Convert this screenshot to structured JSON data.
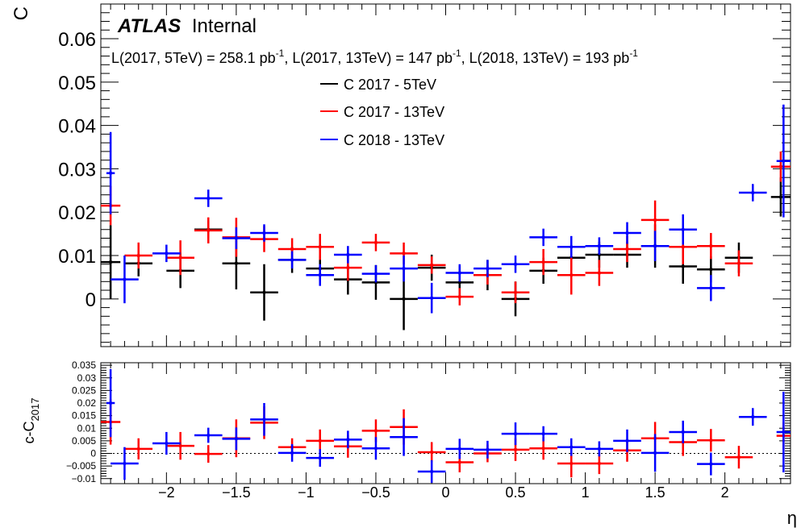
{
  "chart_data": [
    {
      "type": "scatter",
      "experiment": "ATLAS",
      "status": "Internal",
      "lumi_text": {
        "l1_pre": "L(2017, 5TeV) = 258.1 pb",
        "l2_pre": ", L(2017, 13TeV) = 147 pb",
        "l3_pre": ", L(2018, 13TeV) = 193 pb",
        "exp": "-1"
      },
      "ylabel": "C",
      "ylim": [
        -0.011,
        0.068
      ],
      "xlim": [
        -2.47,
        2.47
      ],
      "yticks": [
        0,
        0.01,
        0.02,
        0.03,
        0.04,
        0.05,
        0.06
      ],
      "ytick_labels": [
        "0",
        "0.01",
        "0.02",
        "0.03",
        "0.04",
        "0.05",
        "0.06"
      ],
      "legend_placement": "top-center",
      "series": [
        {
          "name": "C 2017 - 5TeV",
          "color": "#000000",
          "points": [
            {
              "x": -2.4,
              "xerr": 0.07,
              "y": 0.0085,
              "yerr": 0.0085
            },
            {
              "x": -2.2,
              "xerr": 0.1,
              "y": 0.0082,
              "yerr": 0.003
            },
            {
              "x": -1.9,
              "xerr": 0.1,
              "y": 0.0065,
              "yerr": 0.004
            },
            {
              "x": -1.7,
              "xerr": 0.1,
              "y": 0.016,
              "yerr": 0.002
            },
            {
              "x": -1.5,
              "xerr": 0.1,
              "y": 0.0082,
              "yerr": 0.006
            },
            {
              "x": -1.3,
              "xerr": 0.1,
              "y": 0.0015,
              "yerr": 0.0065
            },
            {
              "x": -1.1,
              "xerr": 0.1,
              "y": 0.009,
              "yerr": 0.003
            },
            {
              "x": -0.9,
              "xerr": 0.1,
              "y": 0.007,
              "yerr": 0.003
            },
            {
              "x": -0.7,
              "xerr": 0.1,
              "y": 0.0045,
              "yerr": 0.0035
            },
            {
              "x": -0.5,
              "xerr": 0.1,
              "y": 0.0038,
              "yerr": 0.004
            },
            {
              "x": -0.3,
              "xerr": 0.1,
              "y": 0.0,
              "yerr": 0.0072
            },
            {
              "x": -0.1,
              "xerr": 0.1,
              "y": 0.0072,
              "yerr": 0.003
            },
            {
              "x": 0.1,
              "xerr": 0.1,
              "y": 0.0038,
              "yerr": 0.0038
            },
            {
              "x": 0.3,
              "xerr": 0.1,
              "y": 0.0055,
              "yerr": 0.0035
            },
            {
              "x": 0.5,
              "xerr": 0.1,
              "y": 0.0,
              "yerr": 0.004
            },
            {
              "x": 0.7,
              "xerr": 0.1,
              "y": 0.0065,
              "yerr": 0.003
            },
            {
              "x": 0.9,
              "xerr": 0.1,
              "y": 0.0095,
              "yerr": 0.003
            },
            {
              "x": 1.1,
              "xerr": 0.1,
              "y": 0.0102,
              "yerr": 0.003
            },
            {
              "x": 1.3,
              "xerr": 0.1,
              "y": 0.0102,
              "yerr": 0.003
            },
            {
              "x": 1.5,
              "xerr": 0.1,
              "y": 0.0122,
              "yerr": 0.005
            },
            {
              "x": 1.7,
              "xerr": 0.1,
              "y": 0.0075,
              "yerr": 0.004
            },
            {
              "x": 1.9,
              "xerr": 0.1,
              "y": 0.0068,
              "yerr": 0.003
            },
            {
              "x": 2.1,
              "xerr": 0.1,
              "y": 0.0095,
              "yerr": 0.0035
            },
            {
              "x": 2.4,
              "xerr": 0.07,
              "y": 0.0235,
              "yerr": 0.0045
            }
          ]
        },
        {
          "name": "C 2017 - 13TeV",
          "color": "#ff0000",
          "points": [
            {
              "x": -2.4,
              "xerr": 0.07,
              "y": 0.0215,
              "yerr": 0.0045
            },
            {
              "x": -2.2,
              "xerr": 0.1,
              "y": 0.01,
              "yerr": 0.003
            },
            {
              "x": -1.9,
              "xerr": 0.1,
              "y": 0.0095,
              "yerr": 0.004
            },
            {
              "x": -1.7,
              "xerr": 0.1,
              "y": 0.0158,
              "yerr": 0.003
            },
            {
              "x": -1.5,
              "xerr": 0.1,
              "y": 0.0142,
              "yerr": 0.0045
            },
            {
              "x": -1.3,
              "xerr": 0.1,
              "y": 0.0138,
              "yerr": 0.003
            },
            {
              "x": -1.1,
              "xerr": 0.1,
              "y": 0.0115,
              "yerr": 0.0025
            },
            {
              "x": -0.9,
              "xerr": 0.1,
              "y": 0.012,
              "yerr": 0.003
            },
            {
              "x": -0.7,
              "xerr": 0.1,
              "y": 0.0072,
              "yerr": 0.003
            },
            {
              "x": -0.5,
              "xerr": 0.1,
              "y": 0.013,
              "yerr": 0.002
            },
            {
              "x": -0.3,
              "xerr": 0.1,
              "y": 0.0105,
              "yerr": 0.0025
            },
            {
              "x": -0.1,
              "xerr": 0.1,
              "y": 0.0078,
              "yerr": 0.002
            },
            {
              "x": 0.1,
              "xerr": 0.1,
              "y": 0.0005,
              "yerr": 0.002
            },
            {
              "x": 0.3,
              "xerr": 0.1,
              "y": 0.0055,
              "yerr": 0.0022
            },
            {
              "x": 0.5,
              "xerr": 0.1,
              "y": 0.0015,
              "yerr": 0.0025
            },
            {
              "x": 0.7,
              "xerr": 0.1,
              "y": 0.0085,
              "yerr": 0.003
            },
            {
              "x": 0.9,
              "xerr": 0.1,
              "y": 0.0055,
              "yerr": 0.0045
            },
            {
              "x": 1.1,
              "xerr": 0.1,
              "y": 0.006,
              "yerr": 0.003
            },
            {
              "x": 1.3,
              "xerr": 0.1,
              "y": 0.0115,
              "yerr": 0.003
            },
            {
              "x": 1.5,
              "xerr": 0.1,
              "y": 0.0182,
              "yerr": 0.0045
            },
            {
              "x": 1.7,
              "xerr": 0.1,
              "y": 0.012,
              "yerr": 0.004
            },
            {
              "x": 1.9,
              "xerr": 0.1,
              "y": 0.0122,
              "yerr": 0.003
            },
            {
              "x": 2.1,
              "xerr": 0.1,
              "y": 0.0082,
              "yerr": 0.003
            },
            {
              "x": 2.4,
              "xerr": 0.07,
              "y": 0.0305,
              "yerr": 0.0035
            }
          ]
        },
        {
          "name": "C 2018 - 13TeV",
          "color": "#0000ff",
          "points": [
            {
              "x": -2.4,
              "xerr": 0.03,
              "y": 0.029,
              "yerr": 0.0095
            },
            {
              "x": -2.3,
              "xerr": 0.1,
              "y": 0.0045,
              "yerr": 0.0055
            },
            {
              "x": -2.0,
              "xerr": 0.1,
              "y": 0.0105,
              "yerr": 0.002
            },
            {
              "x": -1.7,
              "xerr": 0.1,
              "y": 0.0232,
              "yerr": 0.002
            },
            {
              "x": -1.5,
              "xerr": 0.1,
              "y": 0.014,
              "yerr": 0.0025
            },
            {
              "x": -1.3,
              "xerr": 0.1,
              "y": 0.0152,
              "yerr": 0.002
            },
            {
              "x": -1.1,
              "xerr": 0.1,
              "y": 0.009,
              "yerr": 0.002
            },
            {
              "x": -0.9,
              "xerr": 0.1,
              "y": 0.0055,
              "yerr": 0.0025
            },
            {
              "x": -0.7,
              "xerr": 0.1,
              "y": 0.0102,
              "yerr": 0.002
            },
            {
              "x": -0.5,
              "xerr": 0.1,
              "y": 0.0058,
              "yerr": 0.002
            },
            {
              "x": -0.3,
              "xerr": 0.1,
              "y": 0.007,
              "yerr": 0.003
            },
            {
              "x": -0.1,
              "xerr": 0.1,
              "y": 0.0002,
              "yerr": 0.0035
            },
            {
              "x": 0.1,
              "xerr": 0.1,
              "y": 0.006,
              "yerr": 0.002
            },
            {
              "x": 0.3,
              "xerr": 0.1,
              "y": 0.007,
              "yerr": 0.002
            },
            {
              "x": 0.5,
              "xerr": 0.1,
              "y": 0.008,
              "yerr": 0.002
            },
            {
              "x": 0.7,
              "xerr": 0.1,
              "y": 0.0142,
              "yerr": 0.002
            },
            {
              "x": 0.9,
              "xerr": 0.1,
              "y": 0.012,
              "yerr": 0.0025
            },
            {
              "x": 1.1,
              "xerr": 0.1,
              "y": 0.0122,
              "yerr": 0.002
            },
            {
              "x": 1.3,
              "xerr": 0.1,
              "y": 0.0152,
              "yerr": 0.0025
            },
            {
              "x": 1.5,
              "xerr": 0.1,
              "y": 0.0122,
              "yerr": 0.0035
            },
            {
              "x": 1.7,
              "xerr": 0.1,
              "y": 0.016,
              "yerr": 0.0035
            },
            {
              "x": 1.9,
              "xerr": 0.1,
              "y": 0.0025,
              "yerr": 0.003
            },
            {
              "x": 2.2,
              "xerr": 0.1,
              "y": 0.0245,
              "yerr": 0.002
            },
            {
              "x": 2.42,
              "xerr": 0.05,
              "y": 0.0318,
              "yerr": 0.013
            }
          ]
        }
      ]
    },
    {
      "type": "scatter",
      "xlabel": "η",
      "ylabel_main": "c-C",
      "ylabel_sub": "2017",
      "xlim": [
        -2.47,
        2.47
      ],
      "ylim": [
        -0.012,
        0.036
      ],
      "xticks": [
        -2,
        -1.5,
        -1,
        -0.5,
        0,
        0.5,
        1,
        1.5,
        2
      ],
      "xtick_labels": [
        "−2",
        "−1.5",
        "−1",
        "−0.5",
        "0",
        "0.5",
        "1",
        "1.5",
        "2"
      ],
      "yticks": [
        -0.01,
        -0.005,
        0,
        0.005,
        0.01,
        0.015,
        0.02,
        0.025,
        0.03,
        0.035
      ],
      "ytick_labels": [
        "−0.01",
        "−0.005",
        "0",
        "0.005",
        "0.01",
        "0.015",
        "0.02",
        "0.025",
        "0.03",
        "0.035"
      ],
      "reference_line": 0,
      "series": [
        {
          "color": "#ff0000",
          "points": [
            {
              "x": -2.4,
              "xerr": 0.07,
              "y": 0.0125,
              "yerr": 0.009
            },
            {
              "x": -2.2,
              "xerr": 0.1,
              "y": 0.0018,
              "yerr": 0.0042
            },
            {
              "x": -1.9,
              "xerr": 0.1,
              "y": 0.003,
              "yerr": 0.0055
            },
            {
              "x": -1.7,
              "xerr": 0.1,
              "y": -0.0002,
              "yerr": 0.0035
            },
            {
              "x": -1.5,
              "xerr": 0.1,
              "y": 0.006,
              "yerr": 0.0075
            },
            {
              "x": -1.3,
              "xerr": 0.1,
              "y": 0.0122,
              "yerr": 0.0065
            },
            {
              "x": -1.1,
              "xerr": 0.1,
              "y": 0.0025,
              "yerr": 0.0035
            },
            {
              "x": -0.9,
              "xerr": 0.1,
              "y": 0.005,
              "yerr": 0.0045
            },
            {
              "x": -0.7,
              "xerr": 0.1,
              "y": 0.0028,
              "yerr": 0.0045
            },
            {
              "x": -0.5,
              "xerr": 0.1,
              "y": 0.009,
              "yerr": 0.0045
            },
            {
              "x": -0.3,
              "xerr": 0.1,
              "y": 0.0105,
              "yerr": 0.007
            },
            {
              "x": -0.1,
              "xerr": 0.1,
              "y": 0.0005,
              "yerr": 0.004
            },
            {
              "x": 0.1,
              "xerr": 0.1,
              "y": -0.0035,
              "yerr": 0.004
            },
            {
              "x": 0.3,
              "xerr": 0.1,
              "y": 0.0,
              "yerr": 0.0035
            },
            {
              "x": 0.5,
              "xerr": 0.1,
              "y": 0.0015,
              "yerr": 0.0045
            },
            {
              "x": 0.7,
              "xerr": 0.1,
              "y": 0.002,
              "yerr": 0.0045
            },
            {
              "x": 0.9,
              "xerr": 0.1,
              "y": -0.004,
              "yerr": 0.0055
            },
            {
              "x": 1.1,
              "xerr": 0.1,
              "y": -0.004,
              "yerr": 0.0042
            },
            {
              "x": 1.3,
              "xerr": 0.1,
              "y": 0.0012,
              "yerr": 0.0045
            },
            {
              "x": 1.5,
              "xerr": 0.1,
              "y": 0.006,
              "yerr": 0.0065
            },
            {
              "x": 1.7,
              "xerr": 0.1,
              "y": 0.0045,
              "yerr": 0.0055
            },
            {
              "x": 1.9,
              "xerr": 0.1,
              "y": 0.0052,
              "yerr": 0.0045
            },
            {
              "x": 2.1,
              "xerr": 0.1,
              "y": -0.0015,
              "yerr": 0.0045
            },
            {
              "x": 2.42,
              "xerr": 0.05,
              "y": 0.007,
              "yerr": 0.0055
            }
          ]
        },
        {
          "color": "#0000ff",
          "points": [
            {
              "x": -2.4,
              "xerr": 0.03,
              "y": 0.02,
              "yerr": 0.0135
            },
            {
              "x": -2.3,
              "xerr": 0.1,
              "y": -0.004,
              "yerr": 0.0065
            },
            {
              "x": -2.0,
              "xerr": 0.1,
              "y": 0.004,
              "yerr": 0.0045
            },
            {
              "x": -1.7,
              "xerr": 0.1,
              "y": 0.0072,
              "yerr": 0.003
            },
            {
              "x": -1.5,
              "xerr": 0.1,
              "y": 0.0058,
              "yerr": 0.0045
            },
            {
              "x": -1.3,
              "xerr": 0.1,
              "y": 0.0135,
              "yerr": 0.0065
            },
            {
              "x": -1.1,
              "xerr": 0.1,
              "y": 0.0002,
              "yerr": 0.0035
            },
            {
              "x": -0.9,
              "xerr": 0.1,
              "y": -0.0018,
              "yerr": 0.0035
            },
            {
              "x": -0.7,
              "xerr": 0.1,
              "y": 0.0055,
              "yerr": 0.0035
            },
            {
              "x": -0.5,
              "xerr": 0.1,
              "y": 0.002,
              "yerr": 0.0045
            },
            {
              "x": -0.3,
              "xerr": 0.1,
              "y": 0.0065,
              "yerr": 0.0075
            },
            {
              "x": -0.1,
              "xerr": 0.1,
              "y": -0.0072,
              "yerr": 0.0045
            },
            {
              "x": 0.1,
              "xerr": 0.1,
              "y": 0.0018,
              "yerr": 0.004
            },
            {
              "x": 0.3,
              "xerr": 0.1,
              "y": 0.0015,
              "yerr": 0.0035
            },
            {
              "x": 0.5,
              "xerr": 0.1,
              "y": 0.0078,
              "yerr": 0.0045
            },
            {
              "x": 0.7,
              "xerr": 0.1,
              "y": 0.0078,
              "yerr": 0.003
            },
            {
              "x": 0.9,
              "xerr": 0.1,
              "y": 0.0025,
              "yerr": 0.0035
            },
            {
              "x": 1.1,
              "xerr": 0.1,
              "y": 0.0018,
              "yerr": 0.003
            },
            {
              "x": 1.3,
              "xerr": 0.1,
              "y": 0.005,
              "yerr": 0.0045
            },
            {
              "x": 1.5,
              "xerr": 0.1,
              "y": 0.0002,
              "yerr": 0.0075
            },
            {
              "x": 1.7,
              "xerr": 0.1,
              "y": 0.0085,
              "yerr": 0.0045
            },
            {
              "x": 1.9,
              "xerr": 0.1,
              "y": -0.0042,
              "yerr": 0.0045
            },
            {
              "x": 2.2,
              "xerr": 0.1,
              "y": 0.0145,
              "yerr": 0.0035
            },
            {
              "x": 2.42,
              "xerr": 0.05,
              "y": 0.0085,
              "yerr": 0.016
            }
          ]
        }
      ]
    }
  ]
}
